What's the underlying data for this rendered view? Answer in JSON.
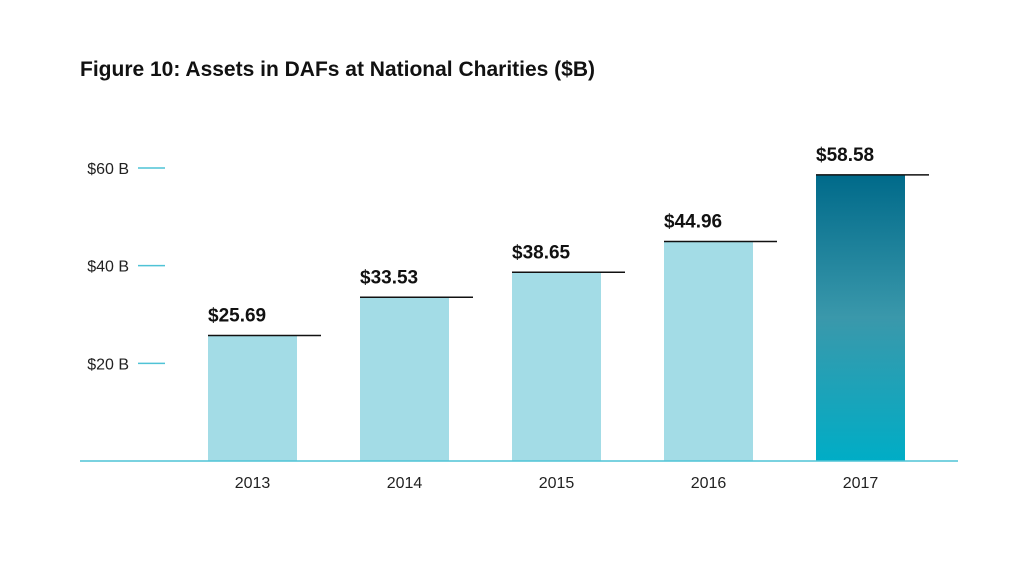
{
  "chart_data": {
    "type": "bar",
    "title": "Figure 10: Assets in DAFs at National Charities ($B)",
    "categories": [
      "2013",
      "2014",
      "2015",
      "2016",
      "2017"
    ],
    "values": [
      25.69,
      33.53,
      38.65,
      44.96,
      58.58
    ],
    "data_labels": [
      "$25.69",
      "$33.53",
      "$38.65",
      "$44.96",
      "$58.58"
    ],
    "y_ticks": [
      {
        "value": 20,
        "label": "$20 B"
      },
      {
        "value": 40,
        "label": "$40 B"
      },
      {
        "value": 60,
        "label": "$60 B"
      }
    ],
    "ylim": [
      0,
      60
    ],
    "grid": false,
    "legend": "none",
    "colors": {
      "bar": "#a3dce6",
      "highlight_top": "#006a8a",
      "highlight_mid": "#3a98ab",
      "highlight_bottom": "#00adc6",
      "axis": "#4fc3d6",
      "tick": "#4fc3d6",
      "label_line": "#111111"
    },
    "highlight_index": 4
  }
}
